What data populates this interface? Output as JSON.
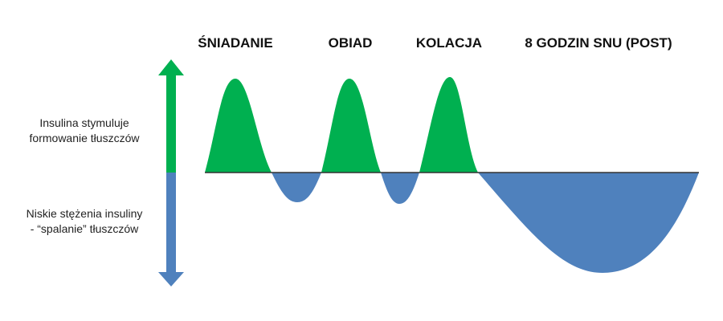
{
  "meals": [
    "ŚNIADANIE",
    "OBIAD",
    "KOLACJA",
    "8 GODZIN SNU (POST)"
  ],
  "labels": {
    "above": [
      "Insulina stymuluje",
      "formowanie tłuszczów"
    ],
    "below": [
      "Niskie stężenia insuliny",
      "- “spalanie” tłuszczów"
    ]
  }
}
